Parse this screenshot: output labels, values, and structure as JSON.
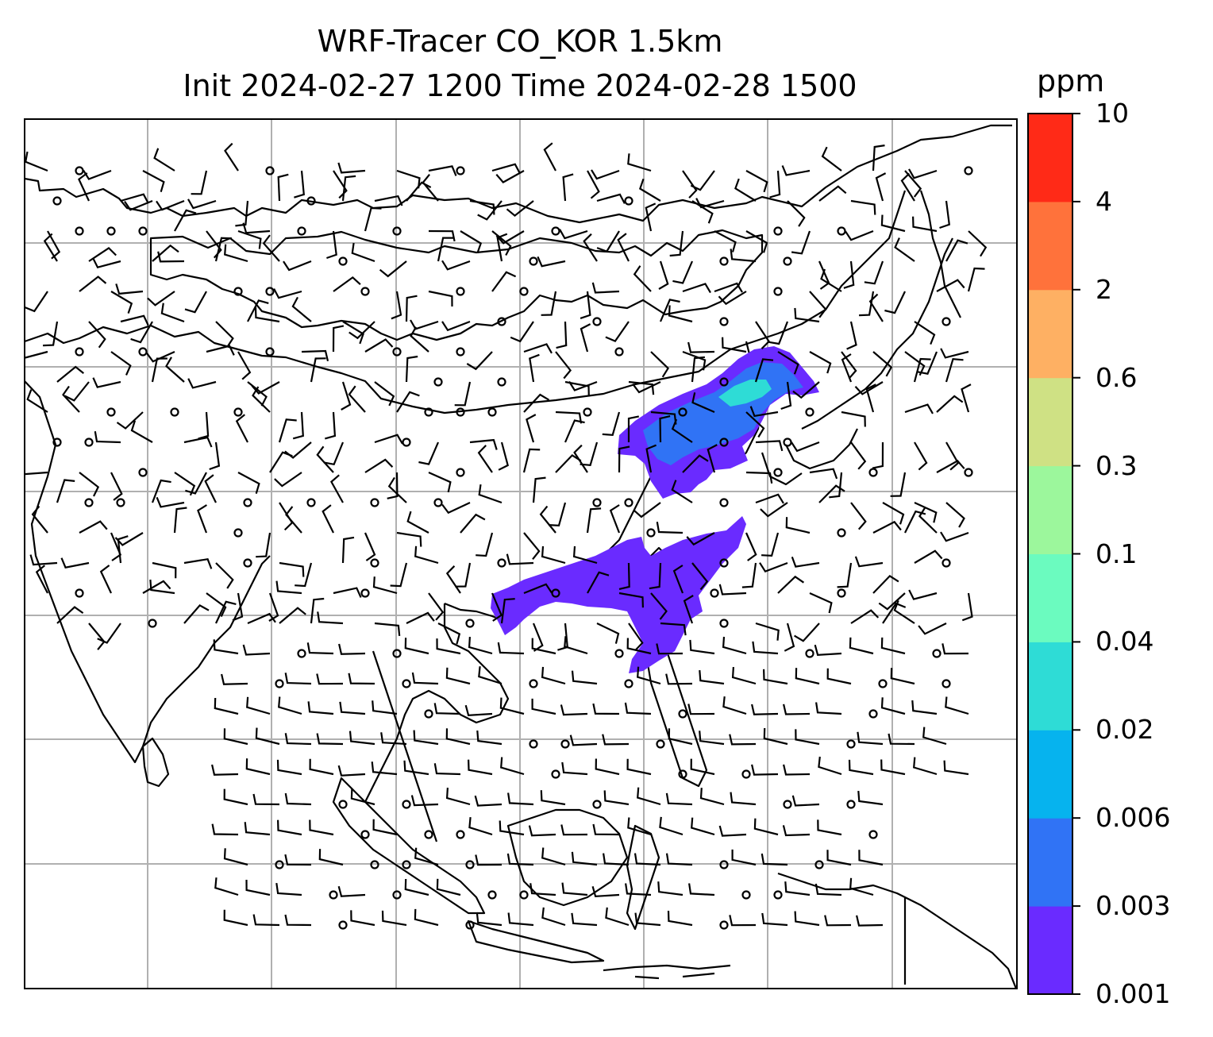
{
  "title": {
    "line1": "WRF-Tracer CO_KOR 1.5km",
    "line2": "Init 2024-02-27 1200 Time 2024-02-28 1500"
  },
  "colorbar": {
    "unit": "ppm",
    "levels": [
      "0.001",
      "0.003",
      "0.006",
      "0.02",
      "0.04",
      "0.1",
      "0.3",
      "0.6",
      "2",
      "4",
      "10"
    ],
    "colors": [
      "#6a2bff",
      "#3073f5",
      "#06b3ee",
      "#2edcd6",
      "#6bfbbf",
      "#9cf79c",
      "#cfe184",
      "#feb063",
      "#ff723b",
      "#ff2a17"
    ]
  },
  "map": {
    "gridlines": true,
    "grid_color": "#b0b0b0",
    "coastline_color": "#000000",
    "plume_primary_color": "#6a2bff",
    "plume_secondary_color": "#3073f5",
    "plume_core_color": "#2edcd6"
  }
}
